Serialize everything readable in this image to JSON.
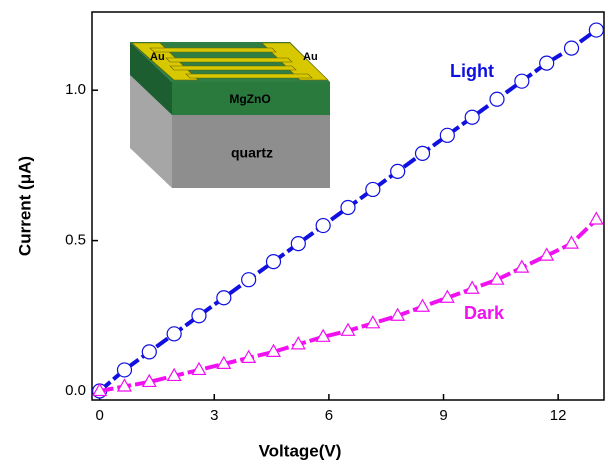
{
  "chart_data": {
    "type": "line",
    "x_label": "Voltage(V)",
    "y_label": "Current (μA)",
    "xlim": [
      -0.2,
      13.2
    ],
    "ylim": [
      -0.03,
      1.26
    ],
    "xticks": [
      0,
      3,
      6,
      9,
      12
    ],
    "yticks": [
      {
        "value": 0,
        "label": "0.0"
      },
      {
        "value": 0.5,
        "label": "0.5"
      },
      {
        "value": 1,
        "label": "1.0"
      }
    ],
    "series": [
      {
        "name": "Light",
        "color": "#1010e0",
        "marker": "circle",
        "x": [
          0,
          0.65,
          1.3,
          1.95,
          2.6,
          3.25,
          3.9,
          4.55,
          5.2,
          5.85,
          6.5,
          7.15,
          7.8,
          8.45,
          9.1,
          9.75,
          10.4,
          11.05,
          11.7,
          12.35,
          13.0
        ],
        "values": [
          0,
          0.07,
          0.13,
          0.19,
          0.25,
          0.31,
          0.37,
          0.43,
          0.49,
          0.55,
          0.61,
          0.67,
          0.73,
          0.79,
          0.85,
          0.91,
          0.97,
          1.03,
          1.09,
          1.14,
          1.2
        ]
      },
      {
        "name": "Dark",
        "color": "#f010f0",
        "marker": "triangle",
        "x": [
          0,
          0.65,
          1.3,
          1.95,
          2.6,
          3.25,
          3.9,
          4.55,
          5.2,
          5.85,
          6.5,
          7.15,
          7.8,
          8.45,
          9.1,
          9.75,
          10.4,
          11.05,
          11.7,
          12.35,
          13.0
        ],
        "values": [
          0,
          0.015,
          0.03,
          0.05,
          0.07,
          0.09,
          0.11,
          0.13,
          0.155,
          0.18,
          0.2,
          0.225,
          0.25,
          0.28,
          0.31,
          0.34,
          0.37,
          0.41,
          0.45,
          0.49,
          0.57
        ]
      }
    ],
    "inset_labels": {
      "electrode_left": "Au",
      "electrode_right": "Au",
      "film": "MgZnO",
      "substrate": "quartz"
    }
  }
}
